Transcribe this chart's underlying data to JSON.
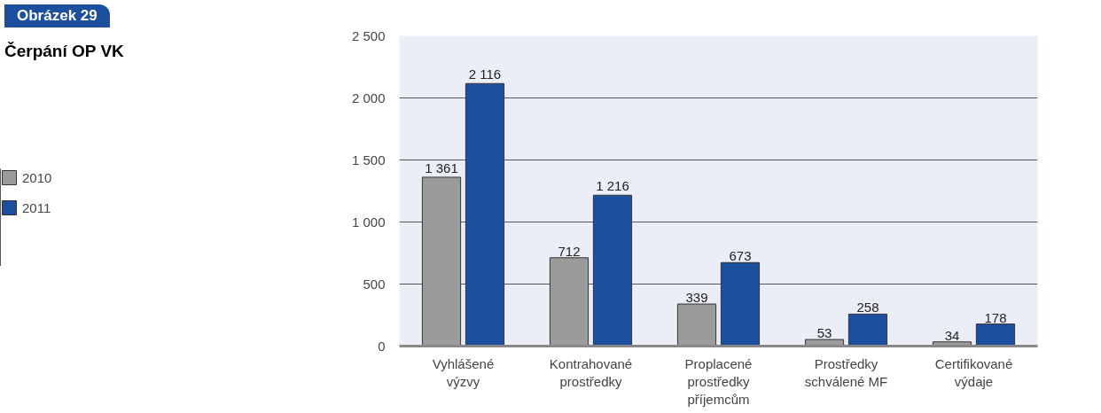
{
  "chart_data": {
    "type": "bar",
    "title": "Čerpání OP VK",
    "annotations": [
      "Obrázek 29"
    ],
    "categories": [
      "Vyhlášené\nvýzvy",
      "Kontrahované\nprostředky",
      "Proplacené\nprostředky\npříjemcům",
      "Prostředky\nschválené MF",
      "Certifikované\nvýdaje"
    ],
    "series": [
      {
        "name": "2010",
        "color": "#9b9b9b",
        "values": [
          1361,
          712,
          339,
          53,
          34
        ],
        "value_labels": [
          "1 361",
          "712",
          "339",
          "53",
          "34"
        ]
      },
      {
        "name": "2011",
        "color": "#1d4f9f",
        "values": [
          2116,
          1216,
          673,
          258,
          178
        ],
        "value_labels": [
          "2 116",
          "1 216",
          "673",
          "258",
          "178"
        ]
      }
    ],
    "ylim": [
      0,
      2500
    ],
    "yticks": [
      0,
      {
        "value": 500,
        "label": "500"
      },
      {
        "value": 1000,
        "label": "1 000"
      },
      {
        "value": 1500,
        "label": "1 500"
      },
      {
        "value": 2000,
        "label": "2 000"
      },
      {
        "value": 2500,
        "label": "2 500"
      }
    ],
    "grid": "y",
    "legend": "left"
  }
}
